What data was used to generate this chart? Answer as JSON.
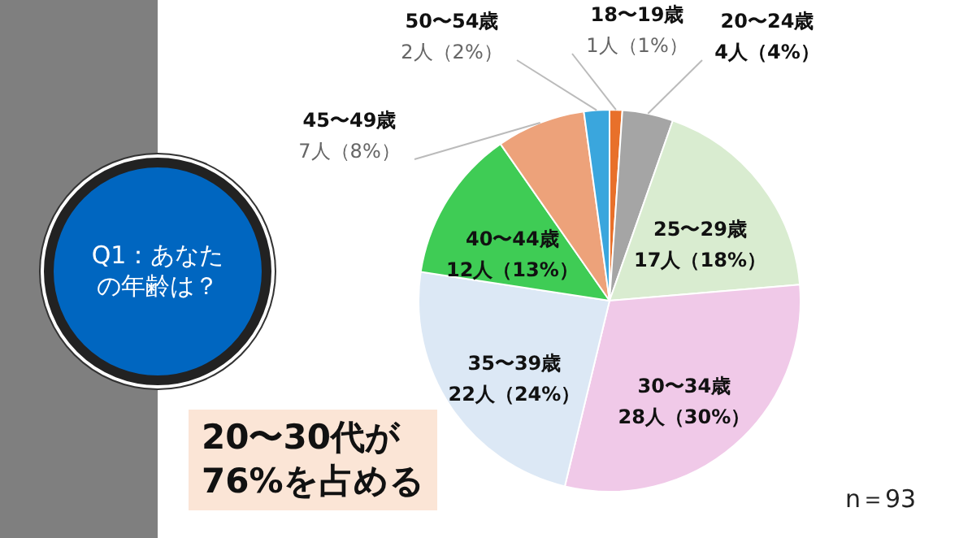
{
  "chart_data": {
    "type": "pie",
    "title": "Q1：あなたの年齢は？",
    "categories": [
      "18〜19歳",
      "20〜24歳",
      "25〜29歳",
      "30〜34歳",
      "35〜39歳",
      "40〜44歳",
      "45〜49歳",
      "50〜54歳"
    ],
    "values": [
      1,
      4,
      17,
      28,
      22,
      12,
      7,
      2
    ],
    "value_labels": [
      "1人（1%）",
      "4人（4%）",
      "17人（18%）",
      "28人（30%）",
      "22人（24%）",
      "12人（13%）",
      "7人（8%）",
      "2人（2%）"
    ],
    "colors": [
      "#e8702a",
      "#a5a5a5",
      "#d9ecd0",
      "#f0c9e8",
      "#dce8f5",
      "#3fcc55",
      "#eda27a",
      "#3aa6dd"
    ],
    "legend": false,
    "annotations": [
      "20〜30代が\n76%を占める",
      "n＝93"
    ]
  }
}
